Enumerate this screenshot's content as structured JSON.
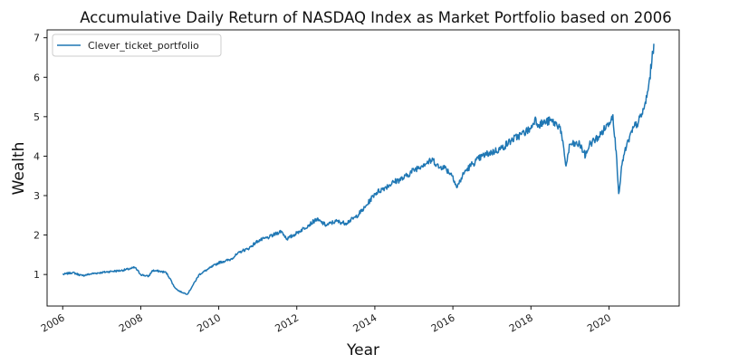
{
  "chart_data": {
    "type": "line",
    "title": "Accumulative Daily Return of NASDAQ Index as Market Portfolio based on 2006",
    "xlabel": "Year",
    "ylabel": "Wealth",
    "xlim": [
      2005.6,
      2021.8
    ],
    "ylim": [
      0.2,
      7.2
    ],
    "xticks": [
      2006,
      2008,
      2010,
      2012,
      2014,
      2016,
      2018,
      2020
    ],
    "xtick_labels": [
      "2006",
      "2008",
      "2010",
      "2012",
      "2014",
      "2016",
      "2018",
      "2020"
    ],
    "yticks": [
      1,
      2,
      3,
      4,
      5,
      6,
      7
    ],
    "ytick_labels": [
      "1",
      "2",
      "3",
      "4",
      "5",
      "6",
      "7"
    ],
    "grid": false,
    "legend": "top-left",
    "colors": {
      "line": "#1f77b4",
      "axis": "#000000"
    },
    "series": [
      {
        "name": "Clever_ticket_portfolio",
        "x": [
          2006.0,
          2006.25,
          2006.5,
          2006.75,
          2007.0,
          2007.25,
          2007.5,
          2007.75,
          2007.85,
          2008.0,
          2008.2,
          2008.3,
          2008.5,
          2008.65,
          2008.75,
          2008.85,
          2008.95,
          2009.05,
          2009.2,
          2009.35,
          2009.5,
          2009.75,
          2010.0,
          2010.3,
          2010.45,
          2010.6,
          2010.75,
          2011.0,
          2011.3,
          2011.6,
          2011.75,
          2012.0,
          2012.3,
          2012.5,
          2012.75,
          2013.0,
          2013.25,
          2013.5,
          2013.75,
          2014.0,
          2014.25,
          2014.5,
          2014.75,
          2015.0,
          2015.25,
          2015.5,
          2015.65,
          2015.75,
          2016.0,
          2016.1,
          2016.3,
          2016.5,
          2016.75,
          2017.0,
          2017.25,
          2017.5,
          2017.75,
          2018.0,
          2018.1,
          2018.2,
          2018.5,
          2018.75,
          2018.9,
          2019.0,
          2019.25,
          2019.4,
          2019.5,
          2019.75,
          2020.0,
          2020.1,
          2020.2,
          2020.25,
          2020.35,
          2020.5,
          2020.65,
          2020.75,
          2020.9,
          2021.0,
          2021.1,
          2021.15
        ],
        "values": [
          1.0,
          1.05,
          0.97,
          1.02,
          1.05,
          1.08,
          1.1,
          1.15,
          1.18,
          1.0,
          0.95,
          1.1,
          1.08,
          1.05,
          0.9,
          0.7,
          0.6,
          0.55,
          0.5,
          0.75,
          1.0,
          1.15,
          1.3,
          1.38,
          1.5,
          1.6,
          1.65,
          1.85,
          1.95,
          2.1,
          1.9,
          2.05,
          2.25,
          2.4,
          2.25,
          2.35,
          2.3,
          2.45,
          2.7,
          3.05,
          3.2,
          3.35,
          3.45,
          3.65,
          3.8,
          3.9,
          3.7,
          3.75,
          3.5,
          3.2,
          3.6,
          3.8,
          4.0,
          4.1,
          4.2,
          4.4,
          4.55,
          4.7,
          4.95,
          4.8,
          4.9,
          4.75,
          3.75,
          4.3,
          4.3,
          4.0,
          4.3,
          4.5,
          4.85,
          5.05,
          3.9,
          3.05,
          3.9,
          4.4,
          4.75,
          4.85,
          5.2,
          5.65,
          6.4,
          6.85
        ]
      }
    ]
  }
}
